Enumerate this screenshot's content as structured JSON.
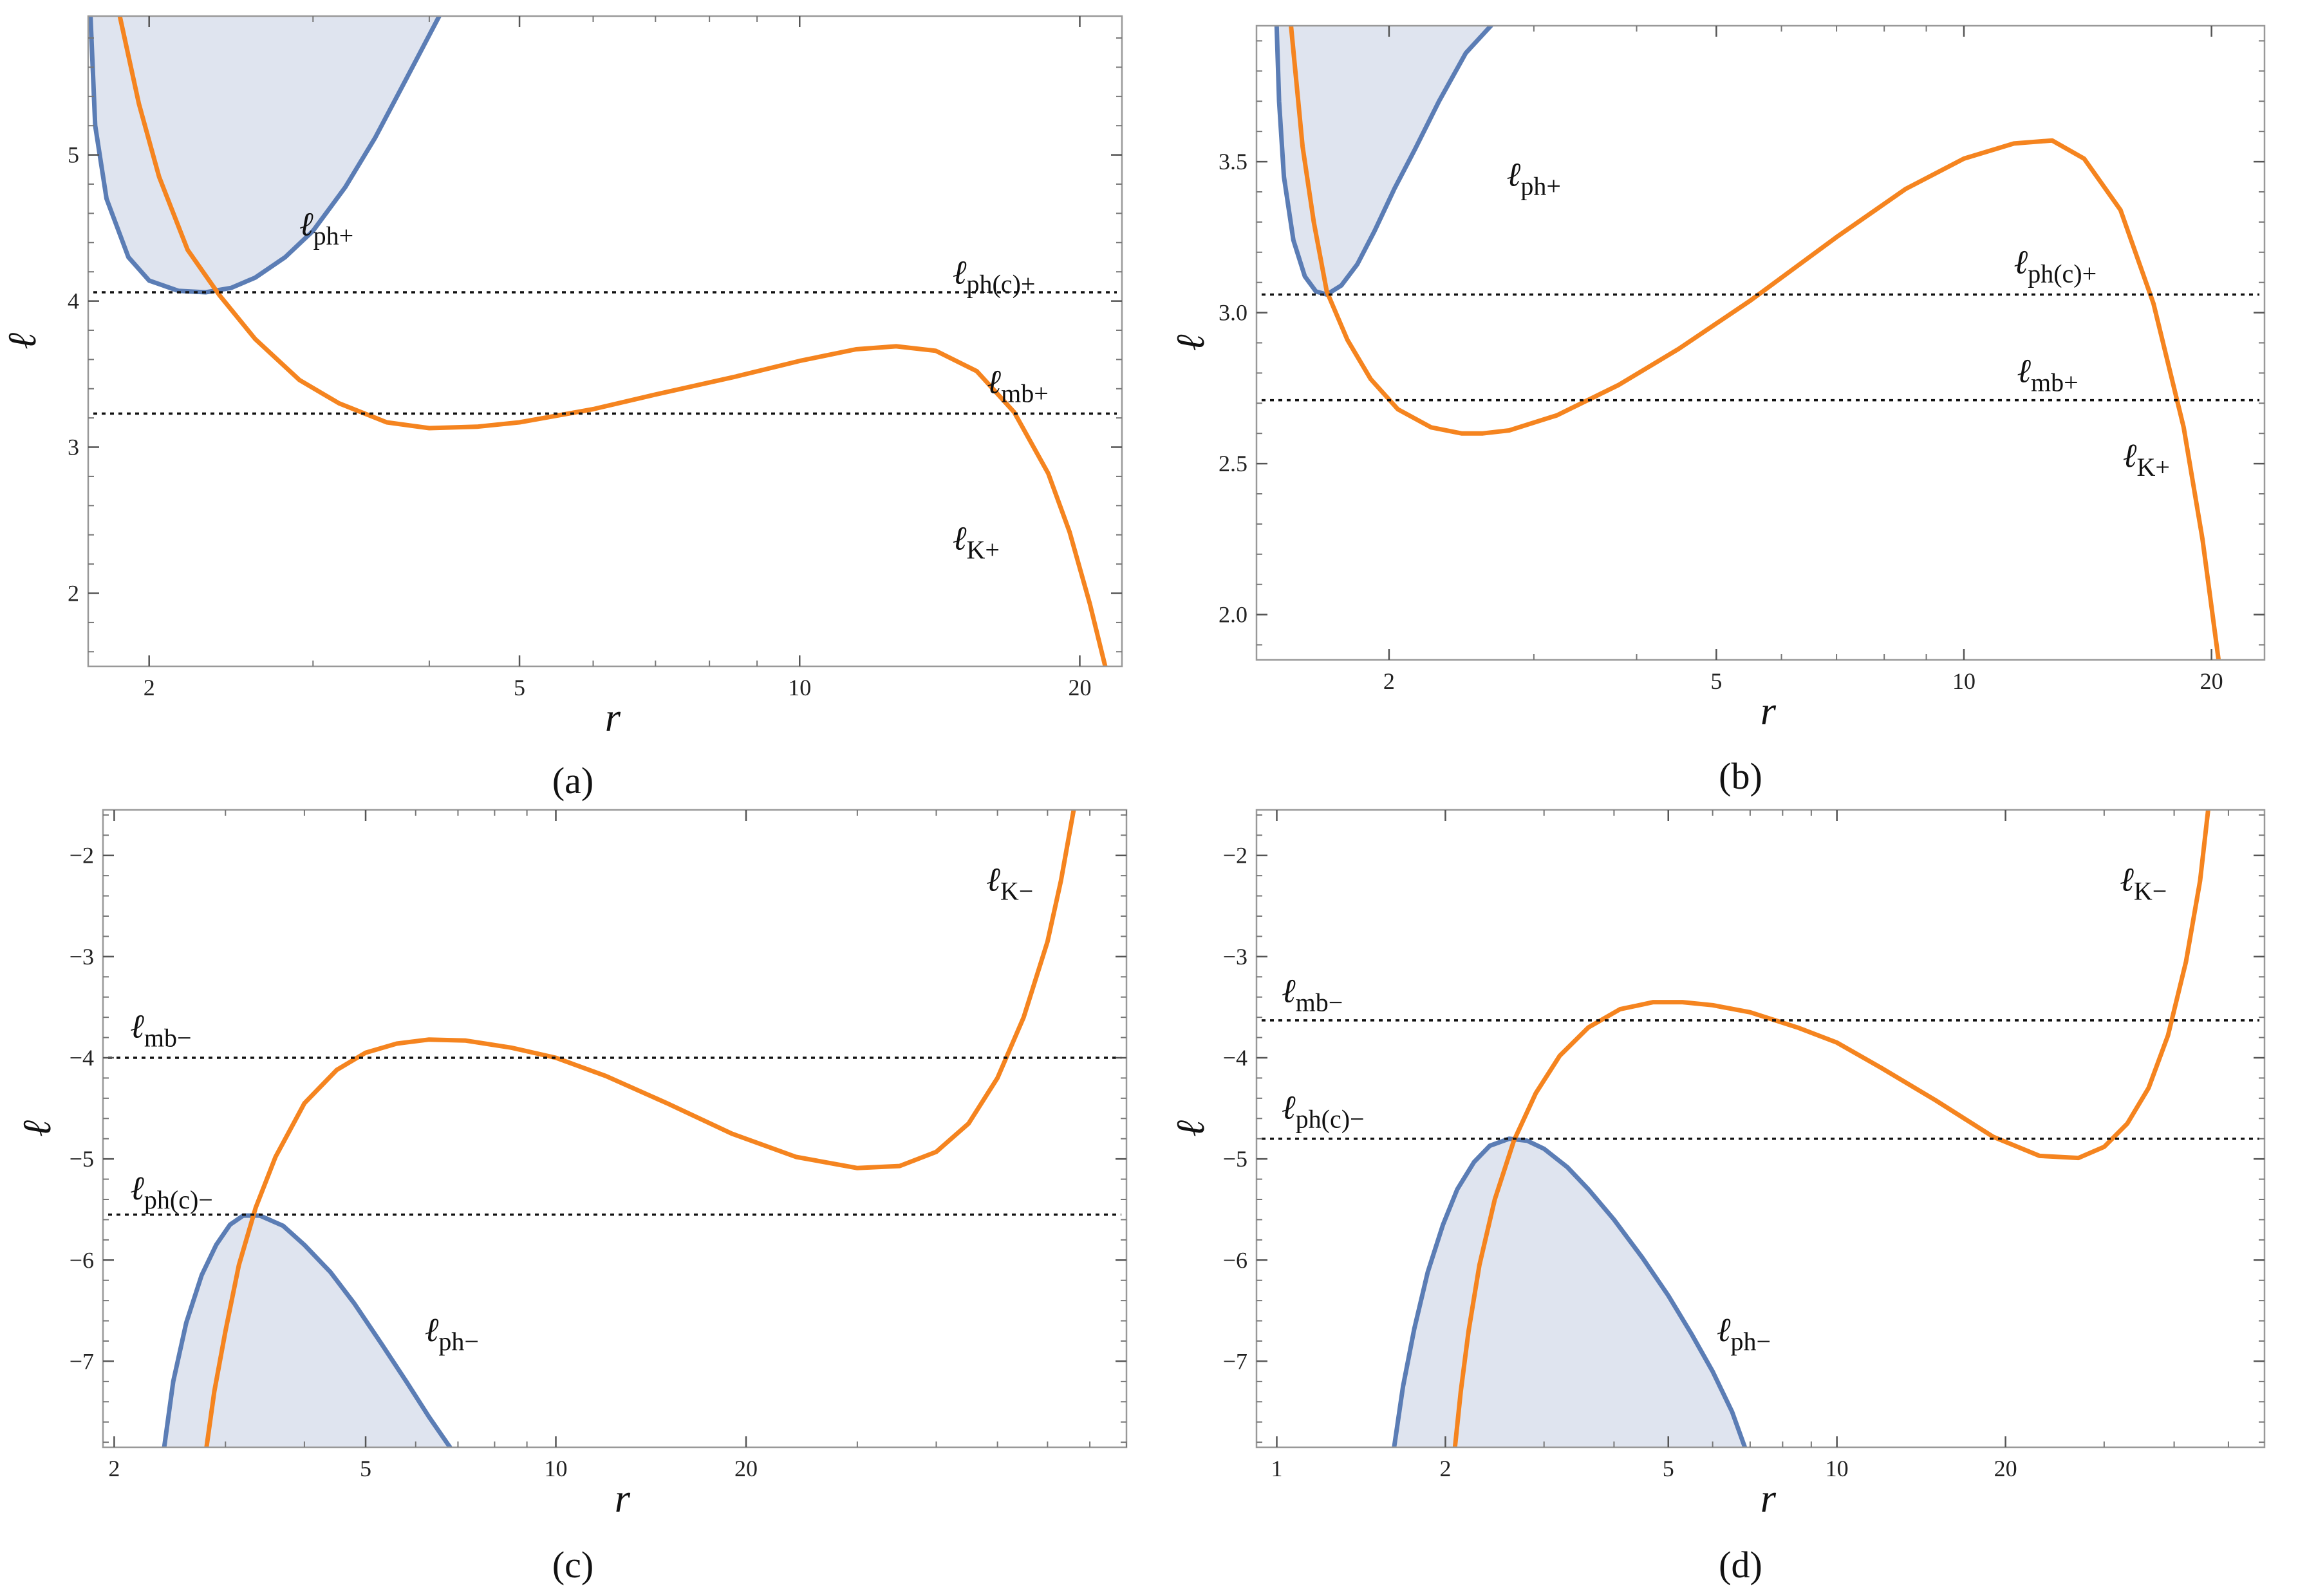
{
  "colors": {
    "photon": "#5b7db5",
    "photon_fill": "#dfe4ef",
    "kepler": "#f5841f",
    "reference": "#111111",
    "frame": "#999999"
  },
  "chart_data": [
    {
      "type": "line",
      "caption": "(a)",
      "xlabel": "r",
      "ylabel": "ℓ",
      "xscale": "log",
      "xlim": [
        1.72,
        22.2
      ],
      "ylim": [
        1.5,
        5.95
      ],
      "xticks": [
        2,
        5,
        10,
        20
      ],
      "yticks": [
        2,
        3,
        4,
        5
      ],
      "ytick_labels": [
        "2",
        "3",
        "4",
        "5"
      ],
      "series": [
        {
          "name": "ℓph+",
          "kind": "photon",
          "shade": "above",
          "x": [
            1.73,
            1.75,
            1.8,
            1.9,
            2.0,
            2.15,
            2.3,
            2.45,
            2.6,
            2.8,
            3.0,
            3.25,
            3.5,
            3.8,
            4.1
          ],
          "y": [
            5.95,
            5.2,
            4.7,
            4.3,
            4.14,
            4.07,
            4.06,
            4.09,
            4.16,
            4.3,
            4.48,
            4.78,
            5.12,
            5.55,
            5.95
          ]
        },
        {
          "name": "ℓK+",
          "kind": "kepler",
          "x": [
            1.86,
            1.95,
            2.05,
            2.2,
            2.38,
            2.6,
            2.9,
            3.2,
            3.6,
            4.0,
            4.5,
            5.0,
            6.0,
            7.0,
            8.5,
            10.0,
            11.5,
            12.7,
            14.0,
            15.5,
            17.0,
            18.5,
            19.5,
            20.5,
            21.3
          ],
          "y": [
            5.95,
            5.35,
            4.85,
            4.35,
            4.04,
            3.74,
            3.46,
            3.3,
            3.17,
            3.13,
            3.14,
            3.17,
            3.26,
            3.36,
            3.48,
            3.59,
            3.67,
            3.69,
            3.66,
            3.52,
            3.24,
            2.82,
            2.42,
            1.93,
            1.5
          ]
        }
      ],
      "reference_lines": [
        {
          "name": "ℓph(c)+",
          "y": 4.06
        },
        {
          "name": "ℓmb+",
          "y": 3.23
        }
      ]
    },
    {
      "type": "line",
      "caption": "(b)",
      "xlabel": "r",
      "ylabel": "ℓ",
      "xscale": "log",
      "xlim": [
        1.38,
        23.2
      ],
      "ylim": [
        1.85,
        3.95
      ],
      "xticks": [
        2,
        5,
        10,
        20
      ],
      "yticks": [
        2.0,
        2.5,
        3.0,
        3.5
      ],
      "ytick_labels": [
        "2.0",
        "2.5",
        "3.0",
        "3.5"
      ],
      "series": [
        {
          "name": "ℓph+",
          "kind": "photon",
          "shade": "above",
          "x": [
            1.46,
            1.47,
            1.49,
            1.53,
            1.58,
            1.63,
            1.68,
            1.75,
            1.83,
            1.92,
            2.03,
            2.15,
            2.3,
            2.48,
            2.66
          ],
          "y": [
            3.95,
            3.7,
            3.45,
            3.24,
            3.12,
            3.07,
            3.06,
            3.09,
            3.16,
            3.27,
            3.41,
            3.54,
            3.7,
            3.86,
            3.95
          ]
        },
        {
          "name": "ℓK+",
          "kind": "kepler",
          "x": [
            1.52,
            1.57,
            1.62,
            1.68,
            1.78,
            1.9,
            2.05,
            2.25,
            2.45,
            2.6,
            2.8,
            3.2,
            3.8,
            4.5,
            5.5,
            7.0,
            8.5,
            10.0,
            11.5,
            12.8,
            14.0,
            15.5,
            17.0,
            18.5,
            19.5,
            20.4
          ],
          "y": [
            3.95,
            3.55,
            3.3,
            3.07,
            2.91,
            2.78,
            2.68,
            2.62,
            2.6,
            2.6,
            2.61,
            2.66,
            2.76,
            2.88,
            3.04,
            3.25,
            3.41,
            3.51,
            3.56,
            3.57,
            3.51,
            3.34,
            3.03,
            2.62,
            2.25,
            1.85
          ]
        }
      ],
      "reference_lines": [
        {
          "name": "ℓph(c)+",
          "y": 3.06
        },
        {
          "name": "ℓmb+",
          "y": 2.71
        }
      ]
    },
    {
      "type": "line",
      "caption": "(c)",
      "xlabel": "r",
      "ylabel": "ℓ",
      "xscale": "log",
      "xlim": [
        1.92,
        80
      ],
      "ylim": [
        -7.85,
        -1.55
      ],
      "xticks": [
        2,
        5,
        10,
        20
      ],
      "yticks": [
        -7,
        -6,
        -5,
        -4,
        -3,
        -2
      ],
      "ytick_labels": [
        "−7",
        "−6",
        "−5",
        "−4",
        "−3",
        "−2"
      ],
      "series": [
        {
          "name": "ℓph−",
          "kind": "photon",
          "shade": "below",
          "x": [
            2.4,
            2.48,
            2.6,
            2.75,
            2.9,
            3.05,
            3.2,
            3.4,
            3.7,
            4.0,
            4.4,
            4.8,
            5.3,
            5.8,
            6.3,
            6.8
          ],
          "y": [
            -7.85,
            -7.2,
            -6.62,
            -6.15,
            -5.85,
            -5.65,
            -5.56,
            -5.56,
            -5.66,
            -5.85,
            -6.12,
            -6.43,
            -6.83,
            -7.2,
            -7.55,
            -7.85
          ]
        },
        {
          "name": "ℓK−",
          "kind": "kepler",
          "x": [
            2.8,
            2.88,
            3.0,
            3.15,
            3.35,
            3.6,
            4.0,
            4.5,
            5.0,
            5.6,
            6.3,
            7.2,
            8.5,
            10.0,
            12.0,
            15.0,
            19.0,
            24.0,
            30.0,
            35.0,
            40.0,
            45.0,
            50.0,
            55.0,
            60.0,
            63.0,
            66.0
          ],
          "y": [
            -7.85,
            -7.3,
            -6.7,
            -6.05,
            -5.48,
            -4.98,
            -4.45,
            -4.12,
            -3.95,
            -3.86,
            -3.82,
            -3.83,
            -3.9,
            -4.0,
            -4.18,
            -4.45,
            -4.75,
            -4.98,
            -5.09,
            -5.07,
            -4.93,
            -4.65,
            -4.2,
            -3.6,
            -2.85,
            -2.25,
            -1.55
          ]
        }
      ],
      "reference_lines": [
        {
          "name": "ℓmb−",
          "y": -4.0
        },
        {
          "name": "ℓph(c)−",
          "y": -5.55
        }
      ]
    },
    {
      "type": "line",
      "caption": "(d)",
      "xlabel": "r",
      "ylabel": "ℓ",
      "xscale": "log",
      "xlim": [
        0.92,
        58
      ],
      "ylim": [
        -7.85,
        -1.55
      ],
      "xticks": [
        1,
        2,
        5,
        10,
        20
      ],
      "yticks": [
        -7,
        -6,
        -5,
        -4,
        -3,
        -2
      ],
      "ytick_labels": [
        "−7",
        "−6",
        "−5",
        "−4",
        "−3",
        "−2"
      ],
      "series": [
        {
          "name": "ℓph−",
          "kind": "photon",
          "shade": "below",
          "x": [
            1.62,
            1.68,
            1.76,
            1.86,
            1.98,
            2.1,
            2.25,
            2.4,
            2.6,
            2.8,
            3.0,
            3.3,
            3.6,
            4.0,
            4.5,
            5.0,
            5.5,
            6.0,
            6.5,
            6.85
          ],
          "y": [
            -7.85,
            -7.25,
            -6.68,
            -6.12,
            -5.65,
            -5.3,
            -5.03,
            -4.87,
            -4.8,
            -4.82,
            -4.9,
            -5.08,
            -5.3,
            -5.6,
            -5.98,
            -6.35,
            -6.73,
            -7.1,
            -7.5,
            -7.85
          ]
        },
        {
          "name": "ℓK−",
          "kind": "kepler",
          "x": [
            2.08,
            2.13,
            2.2,
            2.3,
            2.45,
            2.65,
            2.9,
            3.2,
            3.6,
            4.1,
            4.7,
            5.3,
            6.0,
            7.0,
            8.5,
            10.0,
            12.0,
            15.0,
            19.0,
            23.0,
            27.0,
            30.0,
            33.0,
            36.0,
            39.0,
            42.0,
            44.5,
            46.0
          ],
          "y": [
            -7.85,
            -7.3,
            -6.7,
            -6.05,
            -5.4,
            -4.82,
            -4.35,
            -3.98,
            -3.7,
            -3.52,
            -3.45,
            -3.45,
            -3.48,
            -3.55,
            -3.7,
            -3.85,
            -4.1,
            -4.42,
            -4.78,
            -4.97,
            -4.99,
            -4.88,
            -4.65,
            -4.3,
            -3.78,
            -3.05,
            -2.25,
            -1.55
          ]
        }
      ],
      "reference_lines": [
        {
          "name": "ℓmb−",
          "y": -3.63
        },
        {
          "name": "ℓph(c)−",
          "y": -4.8
        }
      ]
    }
  ]
}
